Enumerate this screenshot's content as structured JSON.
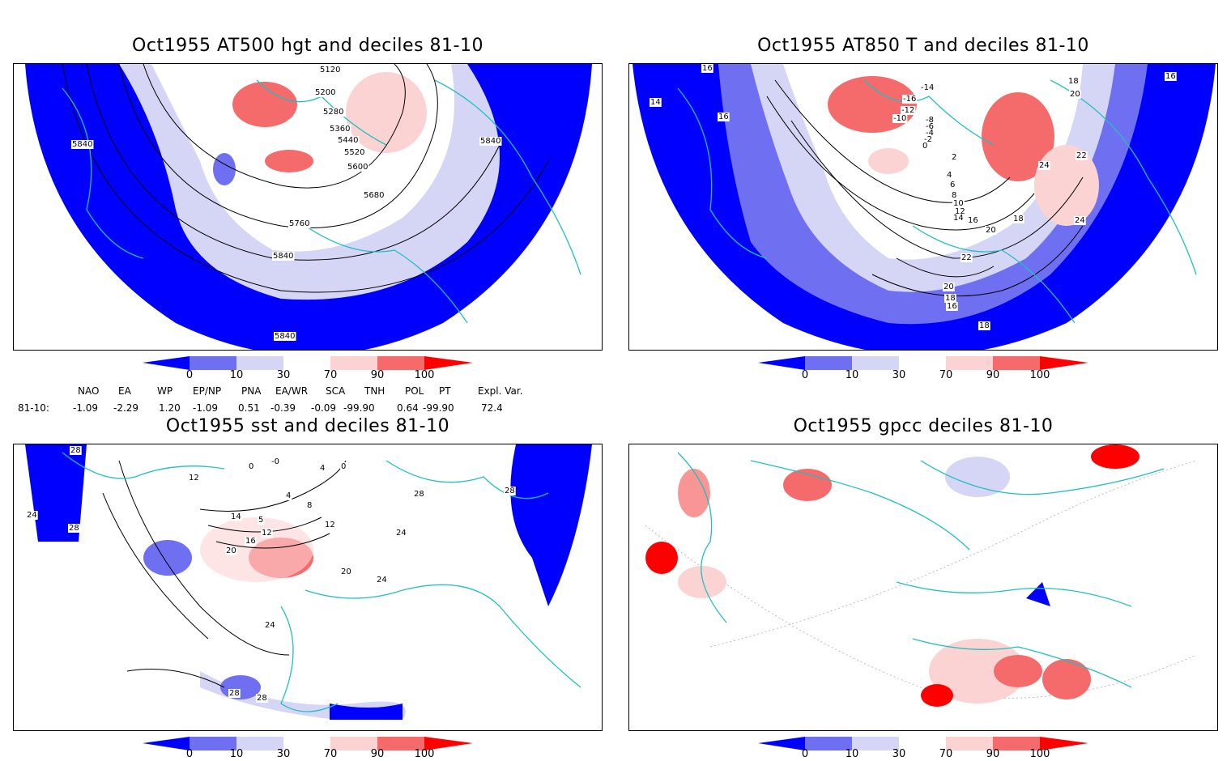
{
  "panels": [
    {
      "id": "p1",
      "title": "Oct1955 AT500 hgt and deciles 81-10",
      "contour_labels": [
        "5120",
        "5200",
        "5280",
        "5360",
        "5440",
        "5520",
        "5600",
        "5680",
        "5760",
        "5840",
        "5840",
        "5840",
        "5840"
      ]
    },
    {
      "id": "p2",
      "title": "Oct1955 AT850 T and deciles 81-10",
      "contour_labels": [
        "16",
        "14",
        "16",
        "16",
        "-14",
        "-16",
        "-12",
        "-10",
        "-8",
        "-6",
        "-4",
        "-2",
        "0",
        "2",
        "4",
        "6",
        "8",
        "10",
        "12",
        "14",
        "16",
        "18",
        "20",
        "18",
        "20",
        "22",
        "24",
        "24",
        "22",
        "20",
        "18",
        "16",
        "18"
      ]
    },
    {
      "id": "p3",
      "title": "Oct1955 sst and deciles 81-10",
      "contour_labels": [
        "28",
        "24",
        "28",
        "12",
        "0",
        "-0",
        "4",
        "0",
        "4",
        "8",
        "12",
        "14",
        "5",
        "12",
        "16",
        "20",
        "20",
        "24",
        "24",
        "28",
        "28",
        "28",
        "24",
        "28"
      ]
    },
    {
      "id": "p4",
      "title": "Oct1955 gpcc deciles 81-10",
      "contour_labels": []
    }
  ],
  "colorbar": {
    "ticks": [
      "0",
      "10",
      "30",
      "70",
      "90",
      "100"
    ],
    "colors": [
      "#0000ff",
      "#6f6ff2",
      "#d5d5f5",
      "#ffffff",
      "#fbd3d3",
      "#f56a6a",
      "#ff0000"
    ]
  },
  "indices": {
    "headers": [
      "NAO",
      "EA",
      "WP",
      "EP/NP",
      "PNA",
      "EA/WR",
      "SCA",
      "TNH",
      "POL",
      "PT",
      "Expl. Var."
    ],
    "row_label": "81-10:",
    "values": [
      "-1.09",
      "-2.29",
      "1.20",
      "-1.09",
      "0.51",
      "-0.39",
      "-0.09",
      "-99.90",
      "0.64",
      "-99.90",
      "72.4"
    ]
  }
}
